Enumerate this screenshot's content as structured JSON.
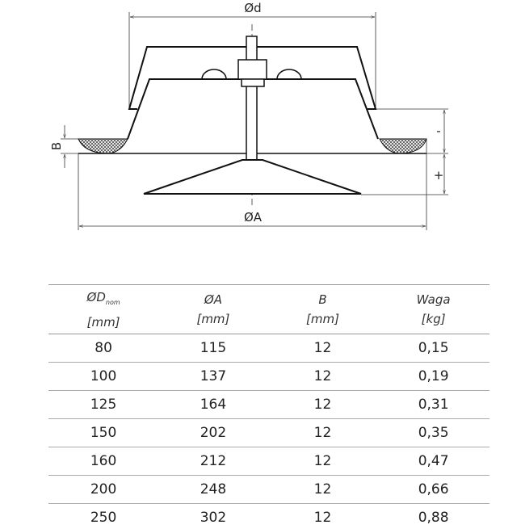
{
  "drawing": {
    "labels": {
      "d": "Ød",
      "A": "ØA",
      "B": "B",
      "minus": "-",
      "plus": "+"
    }
  },
  "table": {
    "headers": [
      {
        "name": "ØD",
        "sub": "nom",
        "unit": "[mm]"
      },
      {
        "name": "ØA",
        "sub": "",
        "unit": "[mm]"
      },
      {
        "name": "B",
        "sub": "",
        "unit": "[mm]"
      },
      {
        "name": "Waga",
        "sub": "",
        "unit": "[kg]"
      }
    ],
    "rows": [
      [
        "80",
        "115",
        "12",
        "0,15"
      ],
      [
        "100",
        "137",
        "12",
        "0,19"
      ],
      [
        "125",
        "164",
        "12",
        "0,31"
      ],
      [
        "150",
        "202",
        "12",
        "0,35"
      ],
      [
        "160",
        "212",
        "12",
        "0,47"
      ],
      [
        "200",
        "248",
        "12",
        "0,66"
      ],
      [
        "250",
        "302",
        "12",
        "0,88"
      ]
    ]
  }
}
